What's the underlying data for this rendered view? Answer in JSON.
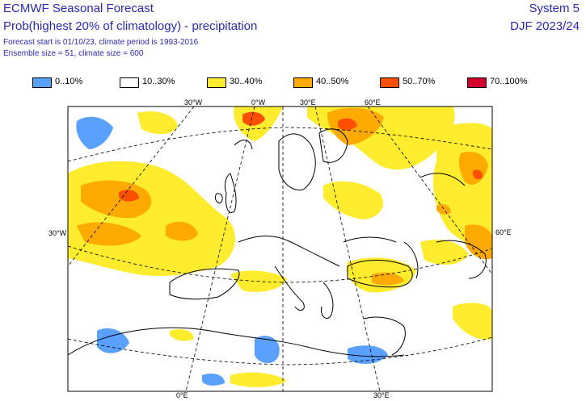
{
  "header": {
    "title": "ECMWF Seasonal Forecast",
    "subtitle": "Prob(highest 20% of climatology) - precipitation",
    "info_line1": "Forecast start is 01/10/23, climate period is 1993-2016",
    "info_line2": "Ensemble size = 51, climate size = 600",
    "system": "System 5",
    "season": "DJF 2023/24"
  },
  "legend": [
    {
      "label": "0..10%",
      "color": "#5aa0ff"
    },
    {
      "label": "10..30%",
      "color": "#ffffff"
    },
    {
      "label": "30..40%",
      "color": "#ffec2e"
    },
    {
      "label": "40..50%",
      "color": "#ffaa00"
    },
    {
      "label": "50..70%",
      "color": "#ff5000"
    },
    {
      "label": "70..100%",
      "color": "#d2002a"
    }
  ],
  "map": {
    "region": "Europe and North Africa",
    "graticule_labels": {
      "top_30w": "30°W",
      "top_0": "0°W",
      "top_30e": "30°E",
      "top_60e": "60°E",
      "left_30w": "30°W",
      "right_60e": "60°E",
      "bottom_0": "0°E",
      "bottom_30e": "30°E"
    }
  }
}
